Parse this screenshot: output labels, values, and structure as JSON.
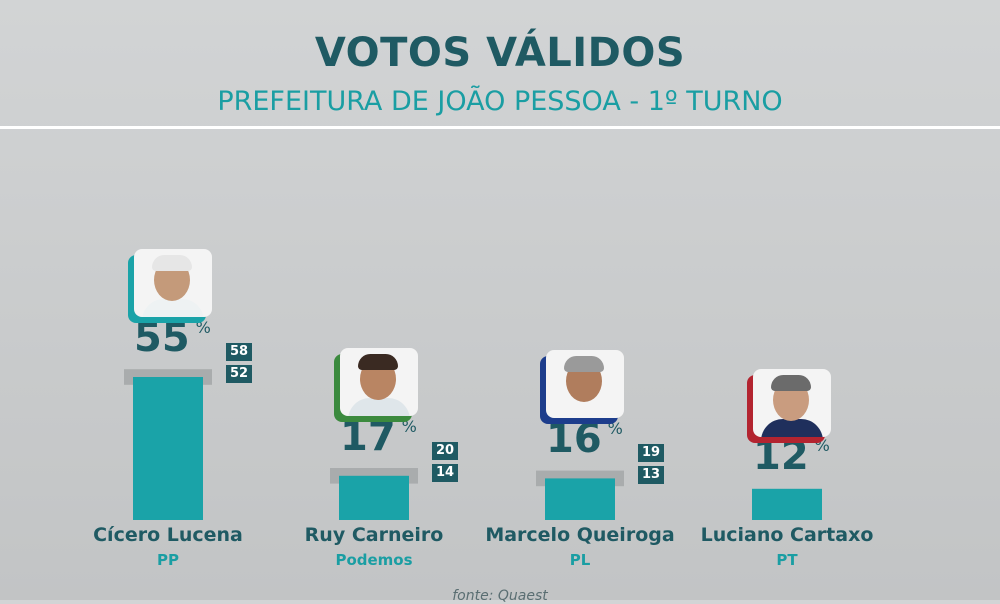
{
  "header": {
    "title": "VOTOS VÁLIDOS",
    "subtitle": "PREFEITURA DE JOÃO PESSOA - 1º TURNO"
  },
  "chart_data": {
    "type": "bar",
    "categories": [
      "Cícero Lucena",
      "Ruy Carneiro",
      "Marcelo Queiroga",
      "Luciano Cartaxo"
    ],
    "parties": [
      "PP",
      "Podemos",
      "PL",
      "PT"
    ],
    "values": [
      55,
      17,
      16,
      12
    ],
    "percent_sign": "%",
    "margin_upper": [
      58,
      20,
      19,
      null
    ],
    "margin_lower": [
      52,
      14,
      13,
      null
    ],
    "ylim": [
      0,
      60
    ],
    "grid": false,
    "bar_color": "#1aa3a8",
    "range_color": "#a9acad",
    "label_color": "#1f5a63",
    "party_color": "#1a9ea3",
    "photo_accent_colors": [
      "#1aa3a8",
      "#3b8a3e",
      "#1d3d8c",
      "#b32430"
    ]
  },
  "footer": {
    "source": "fonte: Quaest"
  }
}
